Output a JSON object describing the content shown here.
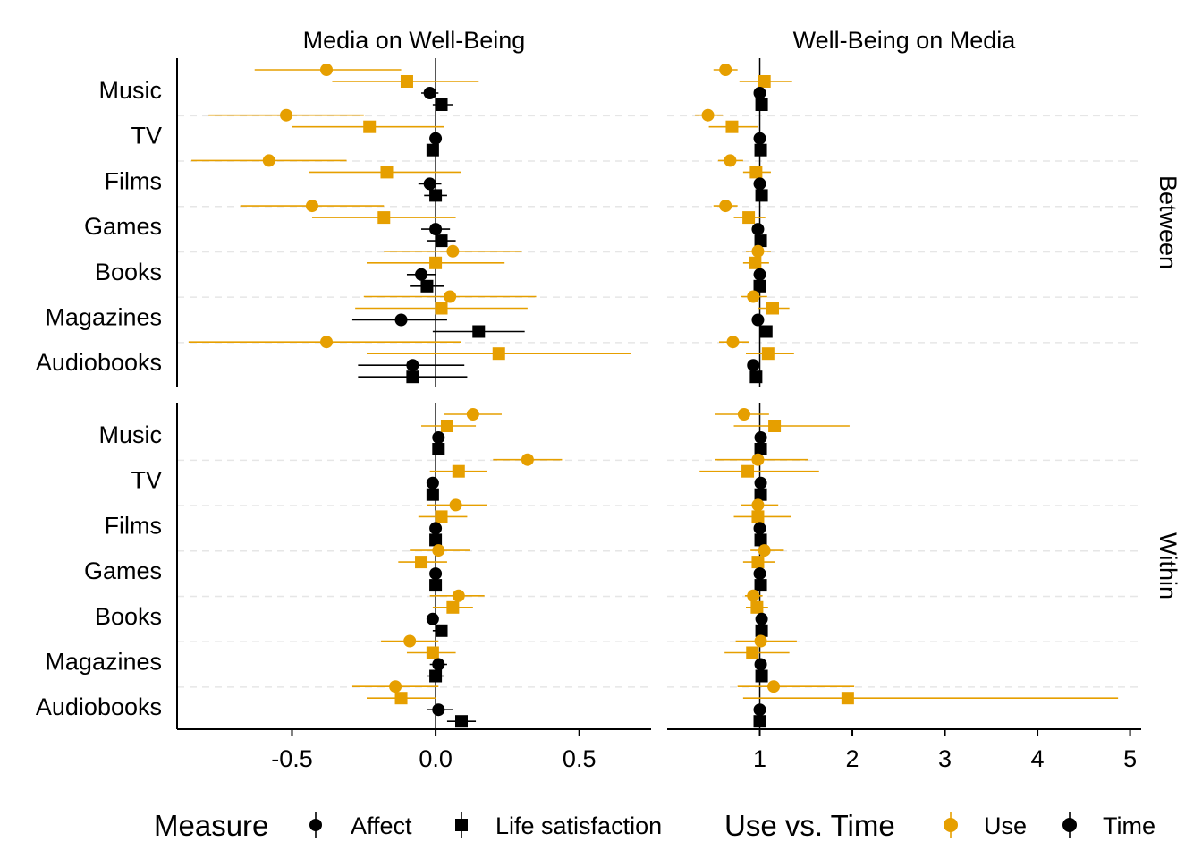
{
  "chart_data": {
    "type": "forest",
    "facets": {
      "columns": [
        "Media on Well-Being",
        "Well-Being on Media"
      ],
      "rows": [
        "Between",
        "Within"
      ]
    },
    "categories": [
      "Music",
      "TV",
      "Films",
      "Games",
      "Books",
      "Magazines",
      "Audiobooks"
    ],
    "x_axes": [
      {
        "ticks": [
          "-0.5",
          "0.0",
          "0.5"
        ],
        "tick_values": [
          -0.5,
          0,
          0.5
        ],
        "range": [
          -0.9,
          0.75
        ],
        "reference": 0
      },
      {
        "ticks": [
          "1",
          "2",
          "3",
          "4",
          "5"
        ],
        "tick_values": [
          1,
          2,
          3,
          4,
          5
        ],
        "range": [
          0.0,
          5.12
        ],
        "reference": 1
      }
    ],
    "legend": {
      "measure_title": "Measure",
      "measure_items": [
        {
          "label": "Affect",
          "shape": "circle"
        },
        {
          "label": "Life satisfaction",
          "shape": "square"
        }
      ],
      "color_title": "Use vs. Time",
      "color_items": [
        {
          "label": "Use",
          "color": "#E69F00"
        },
        {
          "label": "Time",
          "color": "#000000"
        }
      ],
      "position": "bottom"
    },
    "colors": {
      "Use": "#E69F00",
      "Time": "#000000"
    },
    "series_order": [
      {
        "key": "use_affect",
        "color": "Use",
        "shape": "circle"
      },
      {
        "key": "use_ls",
        "color": "Use",
        "shape": "square"
      },
      {
        "key": "time_affect",
        "color": "Time",
        "shape": "circle"
      },
      {
        "key": "time_ls",
        "color": "Time",
        "shape": "square"
      }
    ],
    "panels": [
      {
        "column": "Media on Well-Being",
        "row": "Between",
        "estimates": {
          "Music": {
            "use_affect": [
              -0.38,
              -0.63,
              -0.12
            ],
            "use_ls": [
              -0.1,
              -0.36,
              0.15
            ],
            "time_affect": [
              -0.02,
              -0.05,
              0.01
            ],
            "time_ls": [
              0.02,
              -0.01,
              0.06
            ]
          },
          "TV": {
            "use_affect": [
              -0.52,
              -0.79,
              -0.25
            ],
            "use_ls": [
              -0.23,
              -0.5,
              0.03
            ],
            "time_affect": [
              0.0,
              -0.02,
              0.02
            ],
            "time_ls": [
              -0.01,
              -0.03,
              0.01
            ]
          },
          "Films": {
            "use_affect": [
              -0.58,
              -0.85,
              -0.31
            ],
            "use_ls": [
              -0.17,
              -0.44,
              0.09
            ],
            "time_affect": [
              -0.02,
              -0.06,
              0.02
            ],
            "time_ls": [
              0.0,
              -0.04,
              0.04
            ]
          },
          "Games": {
            "use_affect": [
              -0.43,
              -0.68,
              -0.18
            ],
            "use_ls": [
              -0.18,
              -0.43,
              0.07
            ],
            "time_affect": [
              0.0,
              -0.05,
              0.05
            ],
            "time_ls": [
              0.02,
              -0.03,
              0.07
            ]
          },
          "Books": {
            "use_affect": [
              0.06,
              -0.18,
              0.3
            ],
            "use_ls": [
              0.0,
              -0.24,
              0.24
            ],
            "time_affect": [
              -0.05,
              -0.1,
              0.0
            ],
            "time_ls": [
              -0.03,
              -0.09,
              0.03
            ]
          },
          "Magazines": {
            "use_affect": [
              0.05,
              -0.25,
              0.35
            ],
            "use_ls": [
              0.02,
              -0.28,
              0.32
            ],
            "time_affect": [
              -0.12,
              -0.29,
              0.04
            ],
            "time_ls": [
              0.15,
              -0.01,
              0.31
            ]
          },
          "Audiobooks": {
            "use_affect": [
              -0.38,
              -0.86,
              0.09
            ],
            "use_ls": [
              0.22,
              -0.24,
              0.68
            ],
            "time_affect": [
              -0.08,
              -0.27,
              0.1
            ],
            "time_ls": [
              -0.08,
              -0.27,
              0.11
            ]
          }
        }
      },
      {
        "column": "Well-Being on Media",
        "row": "Between",
        "estimates": {
          "Music": {
            "use_affect": [
              0.63,
              0.5,
              0.76
            ],
            "use_ls": [
              1.05,
              0.78,
              1.35
            ],
            "time_affect": [
              1.0,
              0.97,
              1.03
            ],
            "time_ls": [
              1.02,
              0.99,
              1.05
            ]
          },
          "TV": {
            "use_affect": [
              0.44,
              0.3,
              0.6
            ],
            "use_ls": [
              0.7,
              0.45,
              0.98
            ],
            "time_affect": [
              1.0,
              0.98,
              1.02
            ],
            "time_ls": [
              1.01,
              0.99,
              1.03
            ]
          },
          "Films": {
            "use_affect": [
              0.68,
              0.55,
              0.82
            ],
            "use_ls": [
              0.96,
              0.82,
              1.12
            ],
            "time_affect": [
              1.0,
              0.97,
              1.03
            ],
            "time_ls": [
              1.02,
              0.99,
              1.05
            ]
          },
          "Games": {
            "use_affect": [
              0.63,
              0.5,
              0.76
            ],
            "use_ls": [
              0.88,
              0.72,
              1.06
            ],
            "time_affect": [
              0.98,
              0.95,
              1.01
            ],
            "time_ls": [
              1.01,
              0.98,
              1.04
            ]
          },
          "Books": {
            "use_affect": [
              0.98,
              0.85,
              1.12
            ],
            "use_ls": [
              0.95,
              0.82,
              1.1
            ],
            "time_affect": [
              1.0,
              0.97,
              1.03
            ],
            "time_ls": [
              1.0,
              0.97,
              1.03
            ]
          },
          "Magazines": {
            "use_affect": [
              0.93,
              0.8,
              1.08
            ],
            "use_ls": [
              1.14,
              0.98,
              1.32
            ],
            "time_affect": [
              0.98,
              0.95,
              1.01
            ],
            "time_ls": [
              1.07,
              1.03,
              1.11
            ]
          },
          "Audiobooks": {
            "use_affect": [
              0.71,
              0.56,
              0.88
            ],
            "use_ls": [
              1.09,
              0.85,
              1.37
            ],
            "time_affect": [
              0.93,
              0.9,
              0.96
            ],
            "time_ls": [
              0.96,
              0.92,
              1.0
            ]
          }
        }
      },
      {
        "column": "Media on Well-Being",
        "row": "Within",
        "estimates": {
          "Music": {
            "use_affect": [
              0.13,
              0.03,
              0.23
            ],
            "use_ls": [
              0.04,
              -0.05,
              0.14
            ],
            "time_affect": [
              0.01,
              -0.01,
              0.03
            ],
            "time_ls": [
              0.01,
              -0.01,
              0.03
            ]
          },
          "TV": {
            "use_affect": [
              0.32,
              0.2,
              0.44
            ],
            "use_ls": [
              0.08,
              -0.02,
              0.18
            ],
            "time_affect": [
              -0.01,
              -0.03,
              0.01
            ],
            "time_ls": [
              -0.01,
              -0.03,
              0.01
            ]
          },
          "Films": {
            "use_affect": [
              0.07,
              -0.03,
              0.18
            ],
            "use_ls": [
              0.02,
              -0.06,
              0.11
            ],
            "time_affect": [
              0.0,
              -0.02,
              0.02
            ],
            "time_ls": [
              0.0,
              -0.02,
              0.02
            ]
          },
          "Games": {
            "use_affect": [
              0.01,
              -0.09,
              0.12
            ],
            "use_ls": [
              -0.05,
              -0.13,
              0.04
            ],
            "time_affect": [
              0.0,
              -0.02,
              0.02
            ],
            "time_ls": [
              0.0,
              -0.02,
              0.02
            ]
          },
          "Books": {
            "use_affect": [
              0.08,
              -0.02,
              0.17
            ],
            "use_ls": [
              0.06,
              -0.01,
              0.13
            ],
            "time_affect": [
              -0.01,
              -0.03,
              0.01
            ],
            "time_ls": [
              0.02,
              -0.01,
              0.04
            ]
          },
          "Magazines": {
            "use_affect": [
              -0.09,
              -0.19,
              0.01
            ],
            "use_ls": [
              -0.01,
              -0.1,
              0.07
            ],
            "time_affect": [
              0.01,
              -0.02,
              0.04
            ],
            "time_ls": [
              0.0,
              -0.03,
              0.03
            ]
          },
          "Audiobooks": {
            "use_affect": [
              -0.14,
              -0.29,
              0.01
            ],
            "use_ls": [
              -0.12,
              -0.24,
              0.0
            ],
            "time_affect": [
              0.01,
              -0.03,
              0.06
            ],
            "time_ls": [
              0.09,
              0.04,
              0.14
            ]
          }
        }
      },
      {
        "column": "Well-Being on Media",
        "row": "Within",
        "estimates": {
          "Music": {
            "use_affect": [
              0.83,
              0.52,
              1.1
            ],
            "use_ls": [
              1.16,
              0.72,
              1.97
            ],
            "time_affect": [
              1.01,
              0.99,
              1.03
            ],
            "time_ls": [
              1.01,
              0.99,
              1.03
            ]
          },
          "TV": {
            "use_affect": [
              0.98,
              0.52,
              1.52
            ],
            "use_ls": [
              0.87,
              0.35,
              1.64
            ],
            "time_affect": [
              1.01,
              0.99,
              1.03
            ],
            "time_ls": [
              1.01,
              0.99,
              1.03
            ]
          },
          "Films": {
            "use_affect": [
              0.98,
              0.8,
              1.2
            ],
            "use_ls": [
              0.98,
              0.72,
              1.34
            ],
            "time_affect": [
              1.0,
              0.98,
              1.02
            ],
            "time_ls": [
              1.01,
              0.99,
              1.03
            ]
          },
          "Games": {
            "use_affect": [
              1.05,
              0.9,
              1.26
            ],
            "use_ls": [
              0.98,
              0.82,
              1.16
            ],
            "time_affect": [
              1.0,
              0.98,
              1.02
            ],
            "time_ls": [
              1.01,
              0.99,
              1.03
            ]
          },
          "Books": {
            "use_affect": [
              0.93,
              0.84,
              1.03
            ],
            "use_ls": [
              0.97,
              0.85,
              1.09
            ],
            "time_affect": [
              1.02,
              1.0,
              1.04
            ],
            "time_ls": [
              1.02,
              1.0,
              1.04
            ]
          },
          "Magazines": {
            "use_affect": [
              1.01,
              0.74,
              1.4
            ],
            "use_ls": [
              0.92,
              0.62,
              1.32
            ],
            "time_affect": [
              1.01,
              0.99,
              1.03
            ],
            "time_ls": [
              1.02,
              1.0,
              1.04
            ]
          },
          "Audiobooks": {
            "use_affect": [
              1.15,
              0.76,
              2.02
            ],
            "use_ls": [
              1.95,
              0.82,
              4.87
            ],
            "time_affect": [
              1.0,
              0.98,
              1.02
            ],
            "time_ls": [
              1.0,
              0.98,
              1.02
            ]
          }
        }
      }
    ]
  }
}
